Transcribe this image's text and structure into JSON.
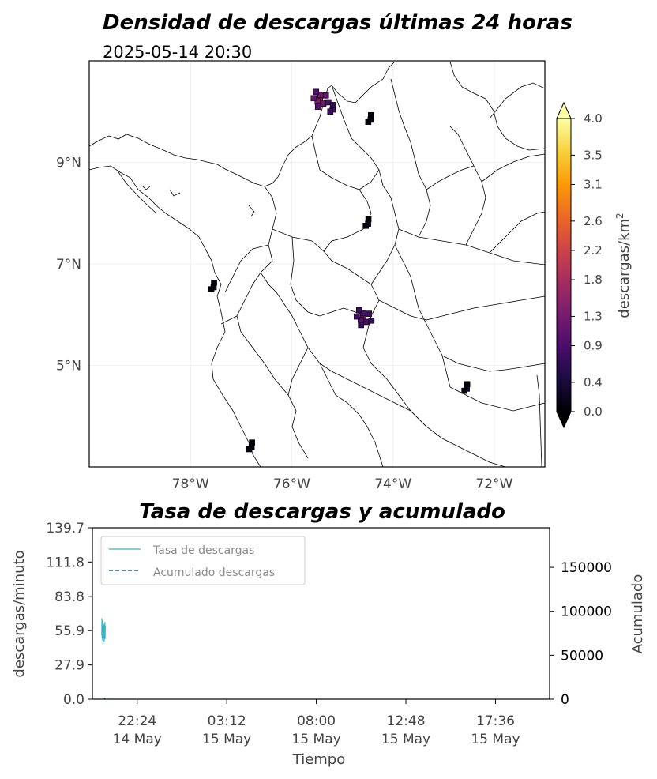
{
  "colors": {
    "rate_line": "#3fb4c0",
    "cumulative_line": "#1f5f86",
    "map_border": "#000000",
    "colormap": [
      "#000004",
      "#1b0c41",
      "#4a0c6b",
      "#781c6d",
      "#a52c60",
      "#cf4446",
      "#ed6925",
      "#fb9b06",
      "#f7d13d",
      "#fcffa4"
    ]
  },
  "chart_data": [
    {
      "type": "heatmap",
      "title": "Densidad de descargas últimas 24 horas",
      "subtitle": "2025-05-14 20:30",
      "x_ticks": [
        "78°W",
        "76°W",
        "74°W",
        "72°W"
      ],
      "x_tick_values": [
        -78,
        -76,
        -74,
        -72
      ],
      "y_ticks": [
        "9°N",
        "7°N",
        "5°N"
      ],
      "y_tick_values": [
        9,
        7,
        5
      ],
      "xlim": [
        -80,
        -71
      ],
      "ylim": [
        3,
        11
      ],
      "colorbar": {
        "label": "descargas/km",
        "label_sup": "2",
        "ticks": [
          "0.0",
          "0.4",
          "0.9",
          "1.3",
          "1.8",
          "2.2",
          "2.6",
          "3.1",
          "3.5",
          "4.0"
        ],
        "range": [
          0,
          4
        ],
        "extend": "both"
      },
      "hotspots": [
        {
          "lon": -75.45,
          "lat": 10.25,
          "value": 1.6
        },
        {
          "lon": -75.2,
          "lat": 10.05,
          "value": 1.0
        },
        {
          "lon": -74.6,
          "lat": 5.95,
          "value": 1.3
        },
        {
          "lon": -74.5,
          "lat": 7.8,
          "value": 0.3
        },
        {
          "lon": -74.45,
          "lat": 9.85,
          "value": 0.2
        },
        {
          "lon": -72.55,
          "lat": 4.55,
          "value": 0.3
        },
        {
          "lon": -77.55,
          "lat": 6.55,
          "value": 0.2
        },
        {
          "lon": -76.8,
          "lat": 3.4,
          "value": 0.2
        }
      ]
    },
    {
      "type": "line",
      "title": "Tasa de descargas y acumulado",
      "xlabel": "Tiempo",
      "ylabel": "descargas/minuto",
      "y2label": "Acumulado",
      "x_ticks": [
        "22:24\n14 May",
        "03:12\n15 May",
        "08:00\n15 May",
        "12:48\n15 May",
        "17:36\n15 May"
      ],
      "x_tick_labels": [
        {
          "time": "22:24",
          "date": "14 May"
        },
        {
          "time": "03:12",
          "date": "15 May"
        },
        {
          "time": "08:00",
          "date": "15 May"
        },
        {
          "time": "12:48",
          "date": "15 May"
        },
        {
          "time": "17:36",
          "date": "15 May"
        }
      ],
      "y_ticks": [
        "0.0",
        "27.9",
        "55.9",
        "83.8",
        "111.8",
        "139.7"
      ],
      "ylim": [
        0,
        139.7
      ],
      "y2_ticks": [
        "0",
        "50000",
        "100000",
        "150000"
      ],
      "y2lim": [
        0,
        195000
      ],
      "legend": [
        "Tasa de descargas",
        "Acumulado descargas"
      ],
      "legend_position": "upper-left",
      "series": [
        {
          "name": "Tasa de descargas",
          "x_minutes_since_2030": [
            0,
            1,
            2,
            3,
            4,
            5,
            6,
            7,
            8,
            9,
            10,
            11,
            12,
            13,
            14,
            15,
            16,
            17,
            18,
            19,
            20
          ],
          "values": [
            52,
            66,
            50,
            64,
            48,
            60,
            56,
            45,
            62,
            54,
            58,
            50,
            61,
            47,
            59,
            55,
            52,
            63,
            49,
            57,
            60
          ]
        },
        {
          "name": "Acumulado descargas",
          "x_minutes_since_2030": [
            0,
            10,
            20
          ],
          "values": [
            0,
            560,
            1150
          ]
        }
      ]
    }
  ]
}
